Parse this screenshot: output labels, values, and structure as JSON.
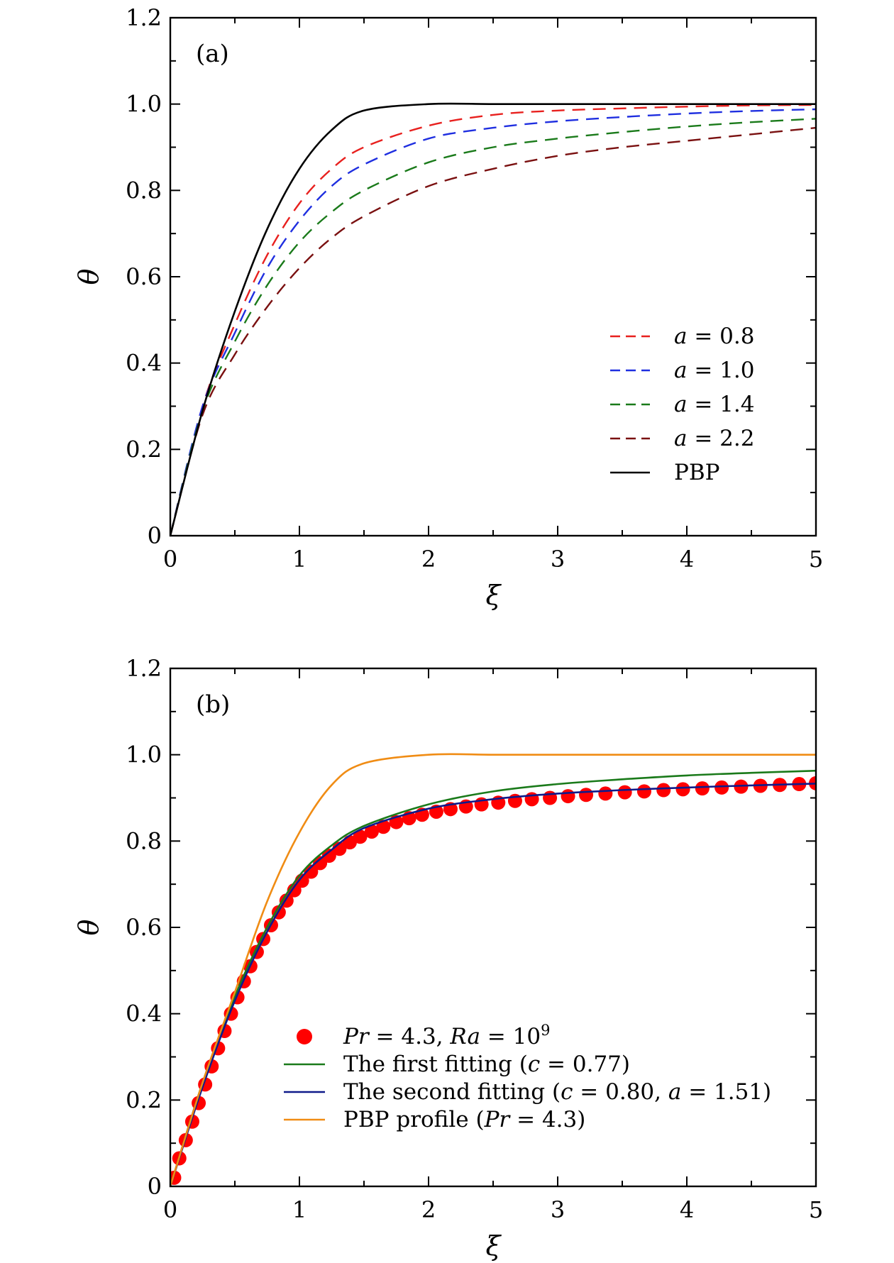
{
  "chart_data": [
    {
      "type": "line",
      "panel_label": "(a)",
      "xlabel": "ξ",
      "ylabel": "θ",
      "xlim": [
        0,
        5
      ],
      "ylim": [
        0,
        1.2
      ],
      "xticks": [
        0,
        1,
        2,
        3,
        4,
        5
      ],
      "xtick_labels": [
        "0",
        "1",
        "2",
        "3",
        "4",
        "5"
      ],
      "yticks": [
        0,
        0.2,
        0.4,
        0.6,
        0.8,
        1.0,
        1.2
      ],
      "ytick_labels": [
        "0",
        "0.2",
        "0.4",
        "0.6",
        "0.8",
        "1.0",
        "1.2"
      ],
      "legend_position": "lower-right",
      "x": [
        0,
        0.25,
        0.5,
        0.75,
        1,
        1.25,
        1.5,
        2,
        2.5,
        3,
        3.5,
        4,
        4.5,
        5
      ],
      "series": [
        {
          "name": "a = 0.8",
          "label_math": "a",
          "label_value": "0.8",
          "color": "#e8201e",
          "style": "dashed",
          "values": [
            0,
            0.3,
            0.49,
            0.65,
            0.77,
            0.85,
            0.9,
            0.95,
            0.975,
            0.985,
            0.99,
            0.994,
            0.997,
            0.998
          ]
        },
        {
          "name": "a = 1.0",
          "label_math": "a",
          "label_value": "1.0",
          "color": "#1f2fe0",
          "style": "dashed",
          "values": [
            0,
            0.3,
            0.47,
            0.62,
            0.73,
            0.81,
            0.86,
            0.92,
            0.945,
            0.96,
            0.97,
            0.978,
            0.984,
            0.988
          ]
        },
        {
          "name": "a = 1.4",
          "label_math": "a",
          "label_value": "1.4",
          "color": "#1a7a1a",
          "style": "dashed",
          "values": [
            0,
            0.29,
            0.45,
            0.58,
            0.68,
            0.75,
            0.8,
            0.865,
            0.9,
            0.92,
            0.935,
            0.948,
            0.958,
            0.966
          ]
        },
        {
          "name": "a = 2.2",
          "label_math": "a",
          "label_value": "2.2",
          "color": "#7a1010",
          "style": "dashed",
          "values": [
            0,
            0.28,
            0.42,
            0.53,
            0.62,
            0.69,
            0.74,
            0.81,
            0.85,
            0.88,
            0.9,
            0.915,
            0.93,
            0.945
          ]
        },
        {
          "name": "PBP",
          "color": "#000000",
          "style": "solid",
          "values": [
            0,
            0.29,
            0.52,
            0.71,
            0.85,
            0.94,
            0.985,
            1.0,
            1.0,
            1.0,
            1.0,
            1.0,
            1.0,
            1.0
          ]
        }
      ]
    },
    {
      "type": "line",
      "panel_label": "(b)",
      "xlabel": "ξ",
      "ylabel": "θ",
      "xlim": [
        0,
        5
      ],
      "ylim": [
        0,
        1.2
      ],
      "xticks": [
        0,
        1,
        2,
        3,
        4,
        5
      ],
      "xtick_labels": [
        "0",
        "1",
        "2",
        "3",
        "4",
        "5"
      ],
      "yticks": [
        0,
        0.2,
        0.4,
        0.6,
        0.8,
        1.0,
        1.2
      ],
      "ytick_labels": [
        "0",
        "0.2",
        "0.4",
        "0.6",
        "0.8",
        "1.0",
        "1.2"
      ],
      "legend_position": "lower-right",
      "scatter": {
        "name": "Pr = 4.3, Ra = 10^9",
        "label_parts": [
          "Pr",
          " = 4.3, ",
          "Ra",
          " = 10",
          "9"
        ],
        "color": "#ff0000",
        "x": [
          0.03,
          0.07,
          0.12,
          0.17,
          0.22,
          0.27,
          0.32,
          0.37,
          0.42,
          0.47,
          0.52,
          0.57,
          0.62,
          0.67,
          0.72,
          0.78,
          0.84,
          0.9,
          0.96,
          1.02,
          1.09,
          1.16,
          1.23,
          1.31,
          1.39,
          1.47,
          1.56,
          1.65,
          1.75,
          1.85,
          1.95,
          2.06,
          2.17,
          2.29,
          2.41,
          2.54,
          2.67,
          2.8,
          2.94,
          3.08,
          3.22,
          3.37,
          3.52,
          3.67,
          3.82,
          3.97,
          4.12,
          4.27,
          4.42,
          4.57,
          4.72,
          4.87,
          5.0
        ],
        "values": [
          0.02,
          0.065,
          0.107,
          0.15,
          0.193,
          0.236,
          0.278,
          0.32,
          0.36,
          0.4,
          0.438,
          0.475,
          0.51,
          0.543,
          0.573,
          0.605,
          0.635,
          0.662,
          0.686,
          0.708,
          0.729,
          0.749,
          0.766,
          0.782,
          0.797,
          0.81,
          0.822,
          0.833,
          0.844,
          0.853,
          0.861,
          0.868,
          0.874,
          0.88,
          0.885,
          0.889,
          0.893,
          0.897,
          0.9,
          0.904,
          0.907,
          0.91,
          0.913,
          0.915,
          0.918,
          0.92,
          0.922,
          0.924,
          0.926,
          0.928,
          0.93,
          0.932,
          0.934
        ]
      },
      "x": [
        0,
        0.25,
        0.5,
        0.75,
        1,
        1.25,
        1.5,
        2,
        2.5,
        3,
        3.5,
        4,
        4.5,
        5
      ],
      "series": [
        {
          "name": "The first fitting (c = 0.77)",
          "label_parts": [
            "The first fitting (",
            "c",
            " = 0.77)"
          ],
          "color": "#1a7a1a",
          "style": "solid",
          "values": [
            0,
            0.24,
            0.44,
            0.6,
            0.72,
            0.79,
            0.835,
            0.885,
            0.915,
            0.932,
            0.943,
            0.952,
            0.958,
            0.963
          ]
        },
        {
          "name": "The second fitting (c = 0.80, a = 1.51)",
          "label_parts": [
            "The second fitting (",
            "c",
            " = 0.80, ",
            "a",
            " = 1.51)"
          ],
          "color": "#0f1a8a",
          "style": "solid",
          "values": [
            0,
            0.23,
            0.43,
            0.59,
            0.71,
            0.78,
            0.83,
            0.875,
            0.897,
            0.91,
            0.918,
            0.924,
            0.929,
            0.933
          ]
        },
        {
          "name": "PBP profile (Pr = 4.3)",
          "label_parts": [
            "PBP profile (",
            "Pr",
            " = 4.3)"
          ],
          "color": "#f08c14",
          "style": "solid",
          "values": [
            0,
            0.24,
            0.45,
            0.66,
            0.82,
            0.93,
            0.98,
            1.0,
            1.0,
            1.0,
            1.0,
            1.0,
            1.0,
            1.0
          ]
        }
      ]
    }
  ]
}
